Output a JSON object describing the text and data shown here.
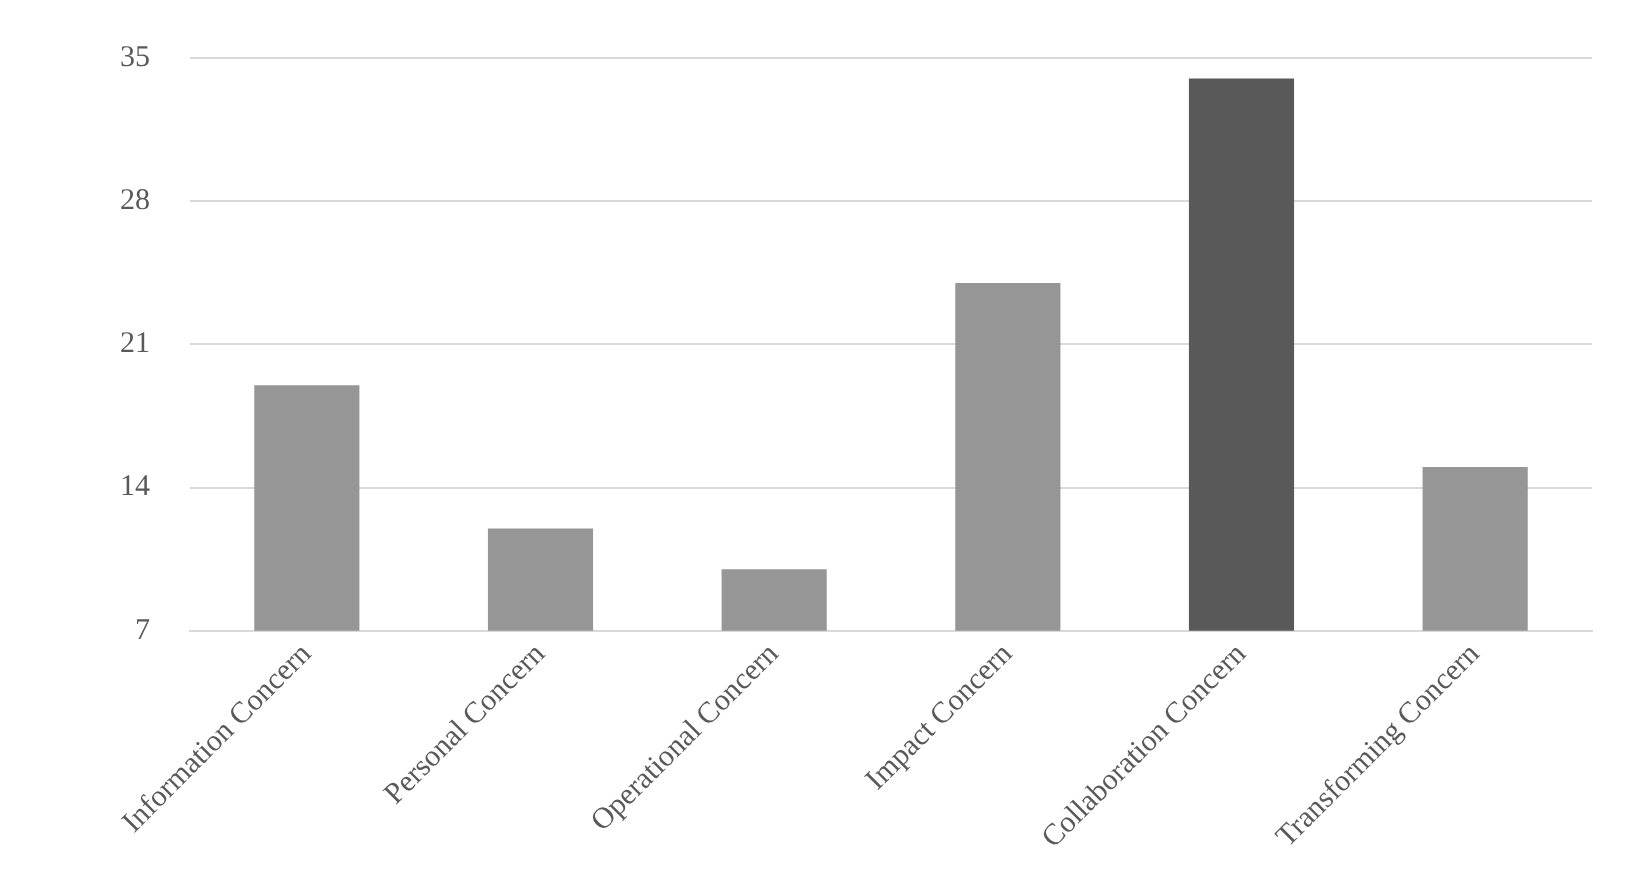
{
  "chart_data": {
    "type": "bar",
    "categories": [
      "Information Concern",
      "Personal Concern",
      "Operational Concern",
      "Impact Concern",
      "Collaboration Concern",
      "Transforming Concern"
    ],
    "values": [
      19,
      12,
      10,
      24,
      34,
      15
    ],
    "colors": [
      "#969696",
      "#969696",
      "#969696",
      "#969696",
      "#595959",
      "#969696"
    ],
    "ylim": [
      7,
      35
    ],
    "yticks": [
      7,
      14,
      21,
      28,
      35
    ],
    "grid": "y",
    "legend": false
  }
}
